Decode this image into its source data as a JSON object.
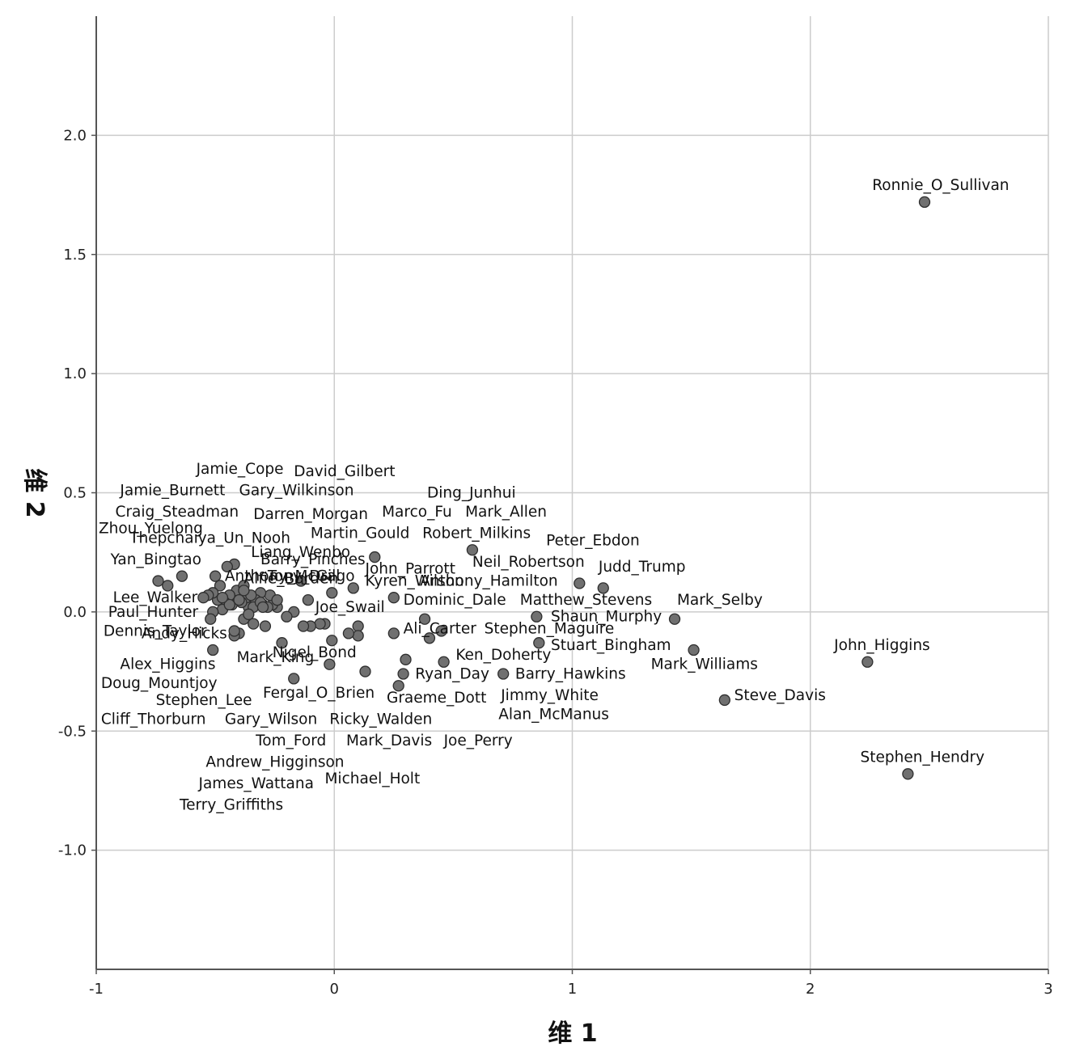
{
  "chart_data": {
    "type": "scatter",
    "xlabel": "维 1",
    "ylabel": "维 2",
    "xlim": [
      -1,
      3
    ],
    "ylim": [
      -1.5,
      2.5
    ],
    "xticks": [
      -1,
      0,
      1,
      2,
      3
    ],
    "yticks": [
      -1.0,
      -0.5,
      0.0,
      0.5,
      1.0,
      1.5,
      2.0
    ],
    "xtick_labels": [
      "-1",
      "0",
      "1",
      "2",
      "3"
    ],
    "ytick_labels": [
      "-1.0",
      "-0.5",
      "0.0",
      "0.5",
      "1.0",
      "1.5",
      "2.0"
    ],
    "grid": true,
    "colors": {
      "marker_fill": "#707070",
      "marker_stroke": "#2e2e2e",
      "grid": "#cccccc",
      "axis": "#555555"
    },
    "points": [
      {
        "label": "Ronnie_O_Sullivan",
        "x": 2.48,
        "y": 1.72
      },
      {
        "label": "Stephen_Hendry",
        "x": 2.41,
        "y": -0.68
      },
      {
        "label": "John_Higgins",
        "x": 2.24,
        "y": -0.21
      },
      {
        "label": "Steve_Davis",
        "x": 1.64,
        "y": -0.37
      },
      {
        "label": "Mark_Williams",
        "x": 1.51,
        "y": -0.16
      },
      {
        "label": "Mark_Selby",
        "x": 1.43,
        "y": -0.03
      },
      {
        "label": "Judd_Trump",
        "x": 1.13,
        "y": 0.1
      },
      {
        "label": "Neil_Robertson",
        "x": 1.03,
        "y": 0.12
      },
      {
        "label": "Peter_Ebdon",
        "x": 0.58,
        "y": 0.26
      },
      {
        "label": "Stuart_Bingham",
        "x": 0.86,
        "y": -0.13
      },
      {
        "label": "Shaun_Murphy",
        "x": 0.85,
        "y": -0.02
      },
      {
        "label": "Barry_Hawkins",
        "x": 0.71,
        "y": -0.26
      },
      {
        "label": "Ken_Doherty",
        "x": 0.46,
        "y": -0.21
      },
      {
        "label": "Stephen_Maguire",
        "x": 0.45,
        "y": -0.08
      },
      {
        "label": "Ali_Carter",
        "x": 0.4,
        "y": -0.11
      },
      {
        "label": "Matthew_Stevens",
        "x": 0.38,
        "y": -0.03
      },
      {
        "label": "Ryan_Day",
        "x": 0.3,
        "y": -0.2
      },
      {
        "label": "Jimmy_White",
        "x": 0.29,
        "y": -0.26
      },
      {
        "label": "Graeme_Dott",
        "x": 0.27,
        "y": -0.31
      },
      {
        "label": "Dominic_Dale",
        "x": 0.25,
        "y": 0.06
      },
      {
        "label": "Anthony_Hamilton",
        "x": 0.25,
        "y": -0.09
      },
      {
        "label": "Robert_Milkins",
        "x": 0.17,
        "y": 0.23
      },
      {
        "label": "Alan_McManus",
        "x": 0.13,
        "y": -0.25
      },
      {
        "label": "Joe_Perry",
        "x": 0.1,
        "y": -0.06
      },
      {
        "label": "Kyren_Wilson",
        "x": 0.08,
        "y": 0.1
      },
      {
        "label": "Mark_Davis",
        "x": 0.1,
        "y": -0.1
      },
      {
        "label": "Ricky_Walden",
        "x": 0.06,
        "y": -0.09
      },
      {
        "label": "John_Parrott",
        "x": -0.01,
        "y": 0.08
      },
      {
        "label": "Joe_Swail",
        "x": -0.04,
        "y": -0.05
      },
      {
        "label": "Fergal_O_Brien",
        "x": -0.01,
        "y": -0.12
      },
      {
        "label": "Nigel_Bond",
        "x": -0.02,
        "y": -0.22
      },
      {
        "label": "Michael_Holt",
        "x": -0.06,
        "y": -0.05
      },
      {
        "label": "Tom_Ford",
        "x": -0.1,
        "y": -0.06
      },
      {
        "label": "Gary_Wilson",
        "x": -0.13,
        "y": -0.06
      },
      {
        "label": "Liang_Wenbo",
        "x": -0.14,
        "y": 0.13
      },
      {
        "label": "Martin_Gould",
        "x": -0.11,
        "y": 0.05
      },
      {
        "label": "Marco_Fu",
        "x": -0.17,
        "y": 0.0
      },
      {
        "label": "Mark_Allen",
        "x": -0.2,
        "y": -0.02
      },
      {
        "label": "Ding_Junhui",
        "x": -0.22,
        "y": -0.13
      },
      {
        "label": "Mark_King",
        "x": -0.17,
        "y": -0.28
      },
      {
        "label": "Andrew_Higginson",
        "x": -0.24,
        "y": 0.02
      },
      {
        "label": "Barry_Pinches",
        "x": -0.26,
        "y": 0.03
      },
      {
        "label": "Tony_Drago",
        "x": -0.27,
        "y": 0.07
      },
      {
        "label": "Alfie_Burden",
        "x": -0.29,
        "y": -0.06
      },
      {
        "label": "Anthony_McGill",
        "x": -0.3,
        "y": 0.03
      },
      {
        "label": "Darren_Morgan",
        "x": -0.31,
        "y": 0.08
      },
      {
        "label": "Gary_Wilkinson",
        "x": -0.33,
        "y": 0.05
      },
      {
        "label": "David_Gilbert",
        "x": -0.34,
        "y": -0.05
      },
      {
        "label": "James_Wattana",
        "x": -0.36,
        "y": 0.02
      },
      {
        "label": "Jamie_Cope",
        "x": -0.37,
        "y": 0.06
      },
      {
        "label": "Terry_Griffiths",
        "x": -0.38,
        "y": -0.03
      },
      {
        "label": "Andy_Hicks",
        "x": -0.39,
        "y": 0.04
      },
      {
        "label": "Cliff_Thorburn",
        "x": -0.4,
        "y": -0.09
      },
      {
        "label": "Dennis_Taylor",
        "x": -0.41,
        "y": 0.09
      },
      {
        "label": "Thepchaiya_Un_Nooh",
        "x": -0.42,
        "y": 0.2
      },
      {
        "label": "Stephen_Lee",
        "x": -0.42,
        "y": -0.1
      },
      {
        "label": "Jamie_Burnett",
        "x": -0.43,
        "y": 0.03
      },
      {
        "label": "Doug_Mountjoy",
        "x": -0.44,
        "y": 0.07
      },
      {
        "label": "Alex_Higgins",
        "x": -0.45,
        "y": 0.19
      },
      {
        "label": "Craig_Steadman",
        "x": -0.46,
        "y": 0.04
      },
      {
        "label": "Paul_Hunter",
        "x": -0.47,
        "y": 0.01
      },
      {
        "label": "Zhou_Yuelong",
        "x": -0.48,
        "y": 0.11
      },
      {
        "label": "Lee_Walker",
        "x": -0.49,
        "y": 0.05
      },
      {
        "label": "Yan_Bingtao",
        "x": -0.5,
        "y": 0.15
      },
      {
        "label": "",
        "x": -0.51,
        "y": -0.16
      },
      {
        "label": "",
        "x": -0.51,
        "y": 0.08
      },
      {
        "label": "",
        "x": -0.51,
        "y": 0.0
      },
      {
        "label": "",
        "x": -0.52,
        "y": -0.03
      },
      {
        "label": "",
        "x": -0.53,
        "y": 0.07
      },
      {
        "label": "",
        "x": -0.55,
        "y": 0.06
      },
      {
        "label": "",
        "x": -0.64,
        "y": 0.15
      },
      {
        "label": "",
        "x": -0.7,
        "y": 0.11
      },
      {
        "label": "",
        "x": -0.74,
        "y": 0.13
      },
      {
        "label": "",
        "x": -0.38,
        "y": 0.11
      },
      {
        "label": "",
        "x": -0.34,
        "y": 0.02
      },
      {
        "label": "",
        "x": -0.31,
        "y": 0.04
      },
      {
        "label": "",
        "x": -0.28,
        "y": 0.02
      },
      {
        "label": "",
        "x": -0.24,
        "y": 0.05
      },
      {
        "label": "",
        "x": -0.44,
        "y": 0.03
      },
      {
        "label": "",
        "x": -0.35,
        "y": 0.07
      },
      {
        "label": "",
        "x": -0.38,
        "y": 0.09
      },
      {
        "label": "",
        "x": -0.47,
        "y": 0.06
      },
      {
        "label": "",
        "x": -0.4,
        "y": 0.05
      },
      {
        "label": "",
        "x": -0.36,
        "y": -0.01
      },
      {
        "label": "",
        "x": -0.3,
        "y": 0.02
      },
      {
        "label": "",
        "x": -0.42,
        "y": -0.08
      }
    ],
    "labels": [
      {
        "text": "Ronnie_O_Sullivan",
        "x": 2.26,
        "y": 1.77
      },
      {
        "text": "Stephen_Hendry",
        "x": 2.21,
        "y": -0.63
      },
      {
        "text": "John_Higgins",
        "x": 2.1,
        "y": -0.16
      },
      {
        "text": "Steve_Davis",
        "x": 1.68,
        "y": -0.37
      },
      {
        "text": "Mark_Williams",
        "x": 1.33,
        "y": -0.24
      },
      {
        "text": "Mark_Selby",
        "x": 1.44,
        "y": 0.03
      },
      {
        "text": "Judd_Trump",
        "x": 1.11,
        "y": 0.17
      },
      {
        "text": "Neil_Robertson",
        "x": 0.58,
        "y": 0.19
      },
      {
        "text": "Peter_Ebdon",
        "x": 0.89,
        "y": 0.28
      },
      {
        "text": "Stuart_Bingham",
        "x": 0.91,
        "y": -0.16
      },
      {
        "text": "Shaun_Murphy",
        "x": 0.91,
        "y": -0.04
      },
      {
        "text": "Barry_Hawkins",
        "x": 0.76,
        "y": -0.28
      },
      {
        "text": "Ken_Doherty",
        "x": 0.51,
        "y": -0.2
      },
      {
        "text": "Stephen_Maguire",
        "x": 0.63,
        "y": -0.09
      },
      {
        "text": "Ali_Carter",
        "x": 0.29,
        "y": -0.09
      },
      {
        "text": "Matthew_Stevens",
        "x": 0.78,
        "y": 0.03
      },
      {
        "text": "Ryan_Day",
        "x": 0.34,
        "y": -0.28
      },
      {
        "text": "Jimmy_White",
        "x": 0.7,
        "y": -0.37
      },
      {
        "text": "Graeme_Dott",
        "x": 0.22,
        "y": -0.38
      },
      {
        "text": "Dominic_Dale",
        "x": 0.29,
        "y": 0.03
      },
      {
        "text": "Anthony_Hamilton",
        "x": 0.36,
        "y": 0.11
      },
      {
        "text": "Robert_Milkins",
        "x": 0.37,
        "y": 0.31
      },
      {
        "text": "Alan_McManus",
        "x": 0.69,
        "y": -0.45
      },
      {
        "text": "Joe_Perry",
        "x": 0.46,
        "y": -0.56
      },
      {
        "text": "Kyren_Wilson",
        "x": 0.13,
        "y": 0.11
      },
      {
        "text": "Mark_Davis",
        "x": 0.05,
        "y": -0.56
      },
      {
        "text": "Ricky_Walden",
        "x": -0.02,
        "y": -0.47
      },
      {
        "text": "John_Parrott",
        "x": 0.13,
        "y": 0.16
      },
      {
        "text": "Joe_Swail",
        "x": -0.08,
        "y": 0.0
      },
      {
        "text": "Fergal_O_Brien",
        "x": -0.3,
        "y": -0.36
      },
      {
        "text": "Nigel_Bond",
        "x": -0.26,
        "y": -0.19
      },
      {
        "text": "Michael_Holt",
        "x": -0.04,
        "y": -0.72
      },
      {
        "text": "Tom_Ford",
        "x": -0.33,
        "y": -0.56
      },
      {
        "text": "Gary_Wilson",
        "x": -0.46,
        "y": -0.47
      },
      {
        "text": "Liang_Wenbo",
        "x": -0.35,
        "y": 0.23
      },
      {
        "text": "Martin_Gould",
        "x": -0.1,
        "y": 0.31
      },
      {
        "text": "Marco_Fu",
        "x": 0.2,
        "y": 0.4
      },
      {
        "text": "Mark_Allen",
        "x": 0.55,
        "y": 0.4
      },
      {
        "text": "Ding_Junhui",
        "x": 0.39,
        "y": 0.48
      },
      {
        "text": "Mark_King",
        "x": -0.41,
        "y": -0.21
      },
      {
        "text": "Andrew_Higginson",
        "x": -0.54,
        "y": -0.65
      },
      {
        "text": "Barry_Pinches",
        "x": -0.31,
        "y": 0.2
      },
      {
        "text": "Tony_Drago",
        "x": -0.28,
        "y": 0.13
      },
      {
        "text": "Alfie_Burden",
        "x": -0.38,
        "y": 0.12
      },
      {
        "text": "Anthony_McGill",
        "x": -0.46,
        "y": 0.13
      },
      {
        "text": "Darren_Morgan",
        "x": -0.34,
        "y": 0.39
      },
      {
        "text": "Gary_Wilkinson",
        "x": -0.4,
        "y": 0.49
      },
      {
        "text": "David_Gilbert",
        "x": -0.17,
        "y": 0.57
      },
      {
        "text": "James_Wattana",
        "x": -0.57,
        "y": -0.74
      },
      {
        "text": "Jamie_Cope",
        "x": -0.58,
        "y": 0.58
      },
      {
        "text": "Terry_Griffiths",
        "x": -0.65,
        "y": -0.83
      },
      {
        "text": "Andy_Hicks",
        "x": -0.81,
        "y": -0.11
      },
      {
        "text": "Cliff_Thorburn",
        "x": -0.98,
        "y": -0.47
      },
      {
        "text": "Dennis_Taylor",
        "x": -0.97,
        "y": -0.1
      },
      {
        "text": "Thepchaiya_Un_Nooh",
        "x": -0.86,
        "y": 0.29
      },
      {
        "text": "Stephen_Lee",
        "x": -0.75,
        "y": -0.39
      },
      {
        "text": "Jamie_Burnett",
        "x": -0.9,
        "y": 0.49
      },
      {
        "text": "Doug_Mountjoy",
        "x": -0.98,
        "y": -0.32
      },
      {
        "text": "Alex_Higgins",
        "x": -0.9,
        "y": -0.24
      },
      {
        "text": "Craig_Steadman",
        "x": -0.92,
        "y": 0.4
      },
      {
        "text": "Paul_Hunter",
        "x": -0.95,
        "y": -0.02
      },
      {
        "text": "Zhou_Yuelong",
        "x": -0.99,
        "y": 0.33
      },
      {
        "text": "Lee_Walker",
        "x": -0.93,
        "y": 0.04
      },
      {
        "text": "Yan_Bingtao",
        "x": -0.94,
        "y": 0.2
      }
    ]
  }
}
